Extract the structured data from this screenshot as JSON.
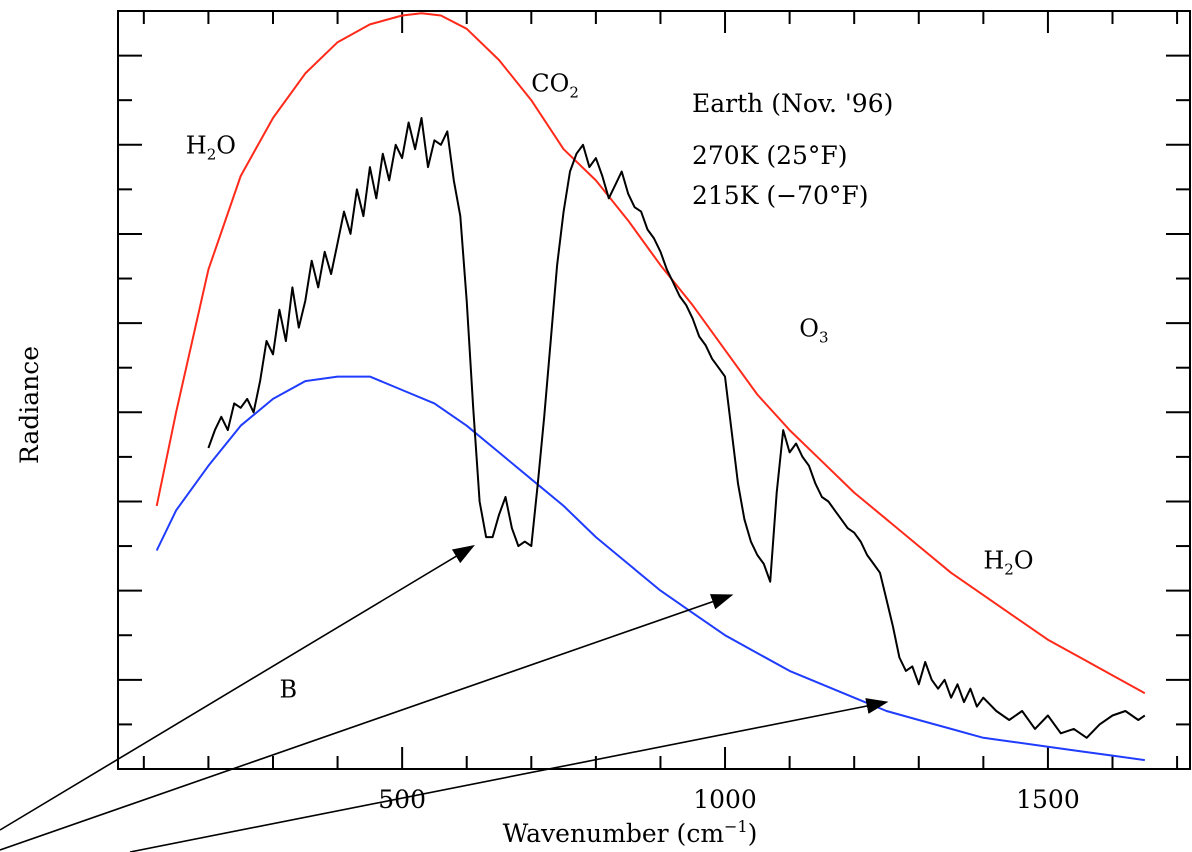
{
  "chart_data": {
    "type": "line",
    "xlabel": "Wavenumber (cm",
    "xlabel_sup": "−1",
    "xlabel_end": ")",
    "ylabel": "Radiance",
    "xlim": [
      60,
      1720
    ],
    "ylim": [
      0,
      17
    ],
    "yticks_labeled": false,
    "grid": false,
    "xticks": [
      500,
      1000,
      1500
    ],
    "xtick_labels": [
      "500",
      "1000",
      "1500"
    ],
    "legend_position": "top-right",
    "legend": {
      "title": "Earth (Nov. '96)",
      "entries": [
        {
          "label": "270K (25°F)",
          "color": "#ff2a1a"
        },
        {
          "label": "215K (−70°F)",
          "color": "#1f3cff"
        }
      ]
    },
    "series": [
      {
        "name": "270K (25°F)",
        "color": "#ff2a1a",
        "x": [
          120,
          150,
          200,
          250,
          300,
          350,
          400,
          450,
          500,
          530,
          560,
          600,
          650,
          700,
          750,
          800,
          850,
          900,
          950,
          1000,
          1050,
          1100,
          1150,
          1200,
          1250,
          1300,
          1350,
          1400,
          1450,
          1500,
          1550,
          1600,
          1650
        ],
        "y": [
          5.9,
          8.0,
          11.2,
          13.3,
          14.6,
          15.6,
          16.3,
          16.7,
          16.9,
          16.95,
          16.9,
          16.6,
          15.9,
          15.0,
          13.9,
          13.2,
          12.3,
          11.3,
          10.4,
          9.4,
          8.4,
          7.6,
          6.9,
          6.2,
          5.6,
          5.0,
          4.4,
          3.9,
          3.4,
          2.9,
          2.5,
          2.1,
          1.7
        ]
      },
      {
        "name": "215K (−70°F)",
        "color": "#1f3cff",
        "x": [
          120,
          150,
          200,
          250,
          300,
          350,
          400,
          450,
          500,
          550,
          600,
          650,
          700,
          750,
          800,
          850,
          900,
          950,
          1000,
          1050,
          1100,
          1150,
          1200,
          1250,
          1300,
          1350,
          1400,
          1450,
          1500,
          1550,
          1600,
          1650
        ],
        "y": [
          4.9,
          5.8,
          6.8,
          7.7,
          8.3,
          8.7,
          8.8,
          8.8,
          8.5,
          8.2,
          7.7,
          7.1,
          6.5,
          5.9,
          5.2,
          4.6,
          4.0,
          3.5,
          3.0,
          2.6,
          2.2,
          1.9,
          1.6,
          1.3,
          1.1,
          0.9,
          0.7,
          0.6,
          0.5,
          0.4,
          0.3,
          0.2
        ]
      },
      {
        "name": "Earth (Nov. '96)",
        "color": "#000000",
        "x": [
          200,
          210,
          220,
          230,
          240,
          250,
          260,
          270,
          280,
          290,
          300,
          310,
          320,
          330,
          340,
          350,
          360,
          370,
          380,
          390,
          400,
          410,
          420,
          430,
          440,
          450,
          460,
          470,
          480,
          490,
          500,
          510,
          520,
          530,
          540,
          550,
          560,
          570,
          580,
          590,
          600,
          610,
          620,
          630,
          640,
          650,
          660,
          670,
          680,
          690,
          700,
          710,
          720,
          730,
          740,
          750,
          760,
          770,
          780,
          790,
          800,
          810,
          820,
          830,
          840,
          850,
          860,
          870,
          880,
          890,
          900,
          910,
          920,
          930,
          940,
          950,
          960,
          970,
          980,
          990,
          1000,
          1010,
          1020,
          1030,
          1040,
          1050,
          1060,
          1070,
          1080,
          1090,
          1100,
          1110,
          1120,
          1130,
          1140,
          1150,
          1160,
          1170,
          1180,
          1190,
          1200,
          1210,
          1220,
          1230,
          1240,
          1250,
          1260,
          1270,
          1280,
          1290,
          1300,
          1310,
          1320,
          1330,
          1340,
          1350,
          1360,
          1370,
          1380,
          1390,
          1400,
          1420,
          1440,
          1460,
          1480,
          1500,
          1520,
          1540,
          1560,
          1580,
          1600,
          1620,
          1640,
          1650
        ],
        "y": [
          7.2,
          7.6,
          7.9,
          7.6,
          8.2,
          8.1,
          8.3,
          8.0,
          8.7,
          9.6,
          9.3,
          10.3,
          9.6,
          10.8,
          9.9,
          10.5,
          11.4,
          10.8,
          11.6,
          11.1,
          11.8,
          12.5,
          12.0,
          13.0,
          12.4,
          13.5,
          12.8,
          13.8,
          13.2,
          14.0,
          13.7,
          14.5,
          13.9,
          14.6,
          13.5,
          14.1,
          14.0,
          14.3,
          13.2,
          12.4,
          10.5,
          8.1,
          6.0,
          5.2,
          5.2,
          5.7,
          6.1,
          5.4,
          5.0,
          5.1,
          5.0,
          6.4,
          7.9,
          9.6,
          11.3,
          12.5,
          13.4,
          13.8,
          14.0,
          13.5,
          13.7,
          13.3,
          12.8,
          13.1,
          13.4,
          12.9,
          12.6,
          12.5,
          12.1,
          11.9,
          11.6,
          11.2,
          10.9,
          10.6,
          10.4,
          10.1,
          9.7,
          9.5,
          9.2,
          9.0,
          8.8,
          7.6,
          6.4,
          5.6,
          5.1,
          4.8,
          4.6,
          4.2,
          6.2,
          7.6,
          7.1,
          7.3,
          7.0,
          6.8,
          6.4,
          6.1,
          6.0,
          5.8,
          5.6,
          5.4,
          5.3,
          5.1,
          4.8,
          4.6,
          4.4,
          3.8,
          3.2,
          2.5,
          2.2,
          2.3,
          1.9,
          2.4,
          2.0,
          1.8,
          2.0,
          1.6,
          1.9,
          1.5,
          1.8,
          1.4,
          1.6,
          1.3,
          1.1,
          1.3,
          0.9,
          1.2,
          0.8,
          0.9,
          0.7,
          1.0,
          1.2,
          1.3,
          1.1,
          1.2
        ]
      }
    ],
    "annotations": [
      {
        "text": "H",
        "sub": "2",
        "after": "O",
        "x": 165,
        "y": 13.8
      },
      {
        "text": "CO",
        "sub": "2",
        "after": "",
        "x": 700,
        "y": 15.2
      },
      {
        "text": "O",
        "sub": "3",
        "after": "",
        "x": 1115,
        "y": 9.7
      },
      {
        "text": "H",
        "sub": "2",
        "after": "O",
        "x": 1400,
        "y": 4.5
      },
      {
        "text": "B",
        "sub": "",
        "after": "",
        "x": 310,
        "y": 1.6
      }
    ],
    "arrows": [
      {
        "from": [
          0,
          0
        ],
        "to": [
          610,
          5.0
        ]
      },
      {
        "from": [
          0,
          0
        ],
        "to": [
          1010,
          3.9
        ]
      },
      {
        "from": [
          0,
          0
        ],
        "to": [
          1250,
          1.5
        ]
      }
    ]
  }
}
